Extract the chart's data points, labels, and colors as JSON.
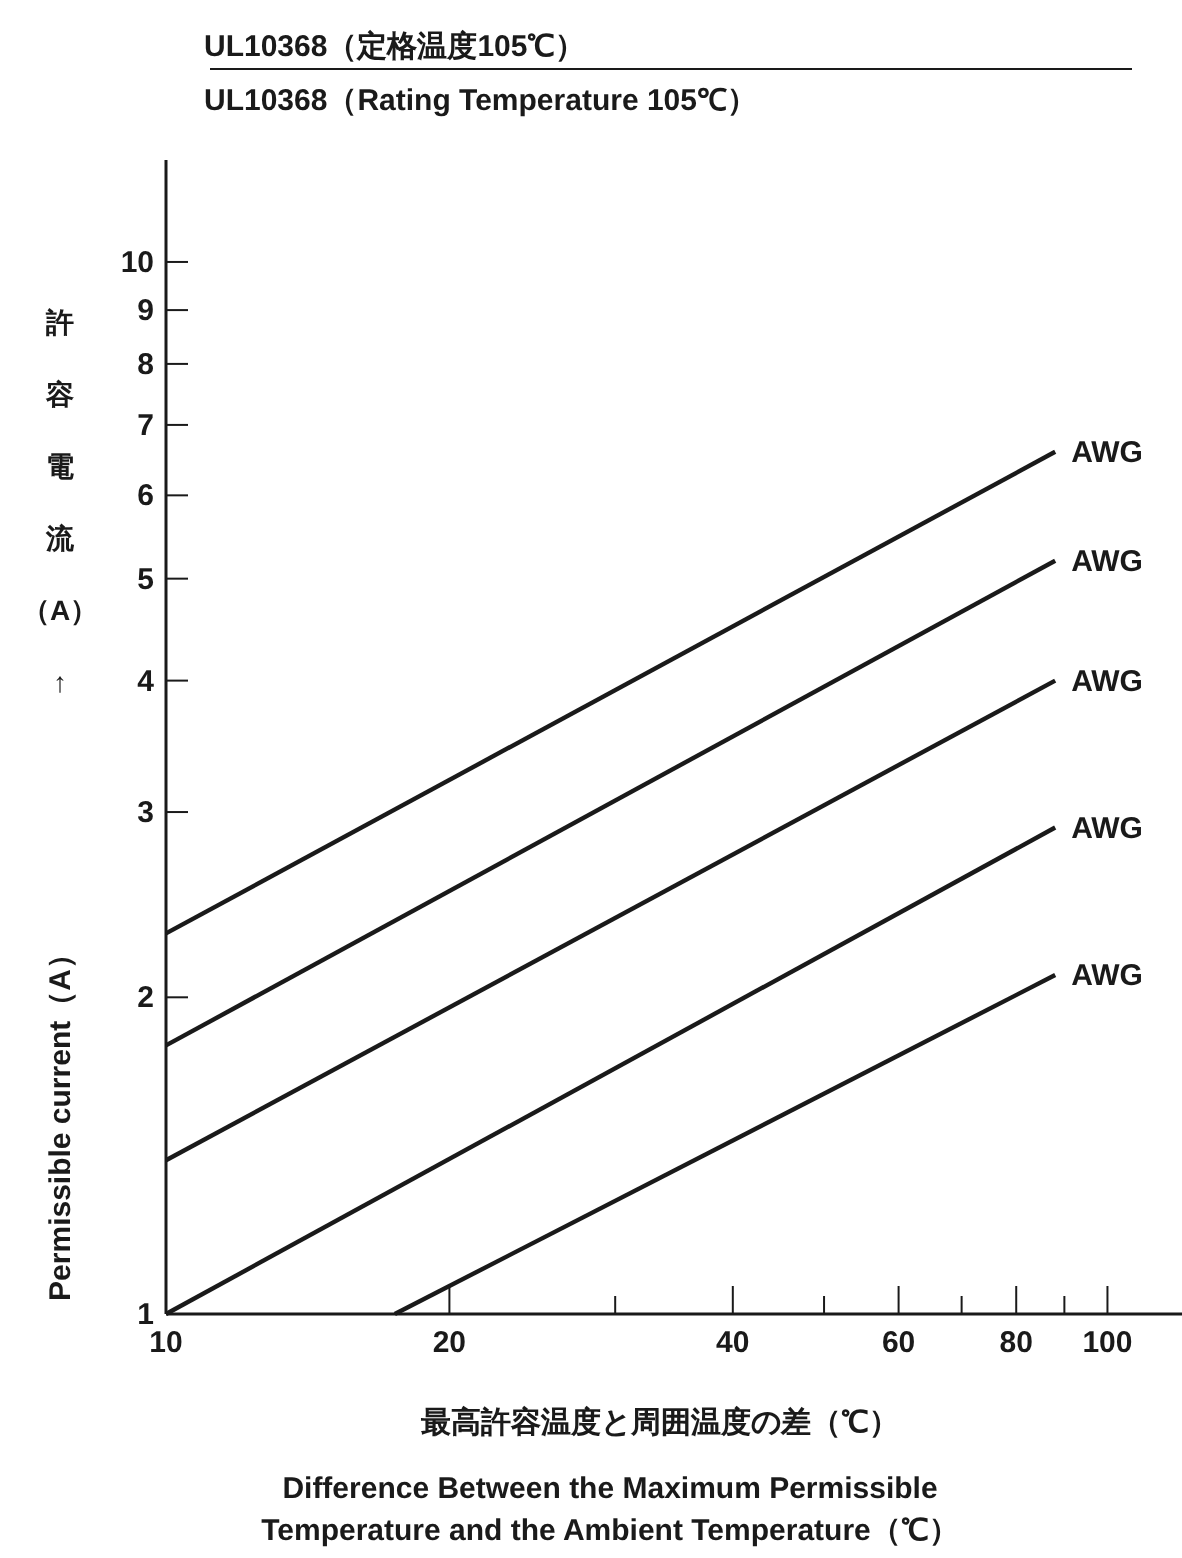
{
  "chart_data": {
    "type": "line",
    "title": "UL10368（定格温度105℃）",
    "subtitle": "UL10368（Rating Temperature 105℃）",
    "xlabel": "最高許容温度と周囲温度の差（℃）",
    "ylabel": "許容電流（A）↑",
    "annotations": [
      "Permissible current（A）",
      "Difference Between the Maximum Permissible\nTemperature and the Ambient Temperature（℃）"
    ],
    "log": "xy",
    "grid": false,
    "line_style": "solid",
    "xlim": [
      10,
      120
    ],
    "ylim": [
      1,
      12.5
    ],
    "xticks": [
      10,
      20,
      {
        "value": 30,
        "label": null
      },
      40,
      {
        "value": 50,
        "label": null
      },
      60,
      {
        "value": 70,
        "label": null
      },
      80,
      {
        "value": 90,
        "label": null
      },
      100
    ],
    "yticks": [
      1,
      2,
      3,
      4,
      5,
      6,
      7,
      8,
      9,
      10
    ],
    "series": [
      {
        "name": "AWG",
        "color": "#1a1a1a",
        "x": [
          10,
          88
        ],
        "values": [
          2.3,
          6.6
        ]
      },
      {
        "name": "AWG",
        "color": "#1a1a1a",
        "x": [
          10,
          88
        ],
        "values": [
          1.8,
          5.2
        ]
      },
      {
        "name": "AWG",
        "color": "#1a1a1a",
        "x": [
          10,
          88
        ],
        "values": [
          1.4,
          4.0
        ]
      },
      {
        "name": "AWG",
        "color": "#1a1a1a",
        "x": [
          10,
          88
        ],
        "values": [
          1.0,
          2.9
        ]
      },
      {
        "name": "AWG",
        "color": "#1a1a1a",
        "x": [
          17.5,
          88
        ],
        "values": [
          1.0,
          2.1
        ]
      }
    ]
  }
}
